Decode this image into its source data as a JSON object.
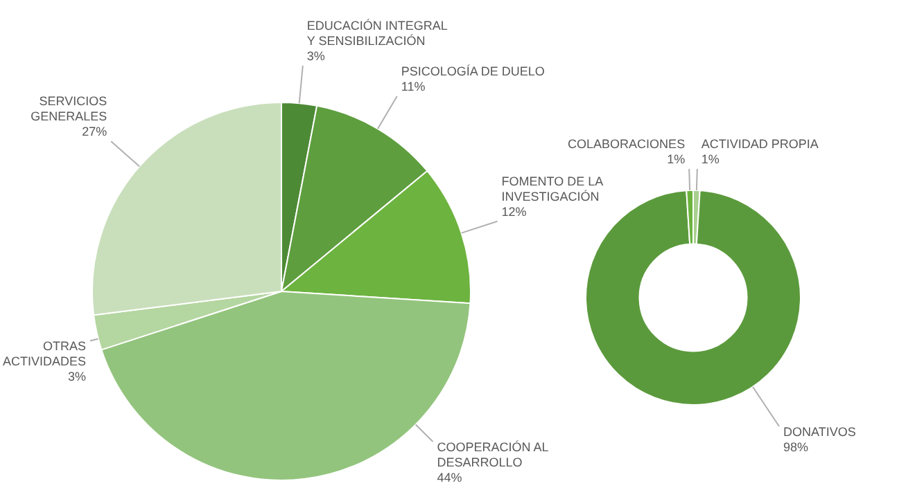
{
  "chart_data": [
    {
      "type": "pie",
      "categories": [
        "EDUCACIÓN INTEGRAL Y SENSIBILIZACIÓN",
        "PSICOLOGÍA DE DUELO",
        "FOMENTO DE LA INVESTIGACIÓN",
        "COOPERACIÓN AL DESARROLLO",
        "OTRAS ACTIVIDADES",
        "SERVICIOS GENERALES"
      ],
      "values": [
        3,
        11,
        12,
        44,
        3,
        27
      ],
      "value_labels": [
        "3%",
        "11%",
        "12%",
        "44%",
        "3%",
        "27%"
      ],
      "colors": [
        "#4d8a36",
        "#5e9e3e",
        "#6db33f",
        "#93c47d",
        "#b4d6a0",
        "#c9dfbc"
      ]
    },
    {
      "type": "donut",
      "categories": [
        "ACTIVIDAD PROPIA",
        "DONATIVOS",
        "COLABORACIONES"
      ],
      "values": [
        1,
        98,
        1
      ],
      "value_labels": [
        "1%",
        "98%",
        "1%"
      ],
      "colors": [
        "#a9d08e",
        "#5b9a3c",
        "#6db33f"
      ]
    }
  ]
}
